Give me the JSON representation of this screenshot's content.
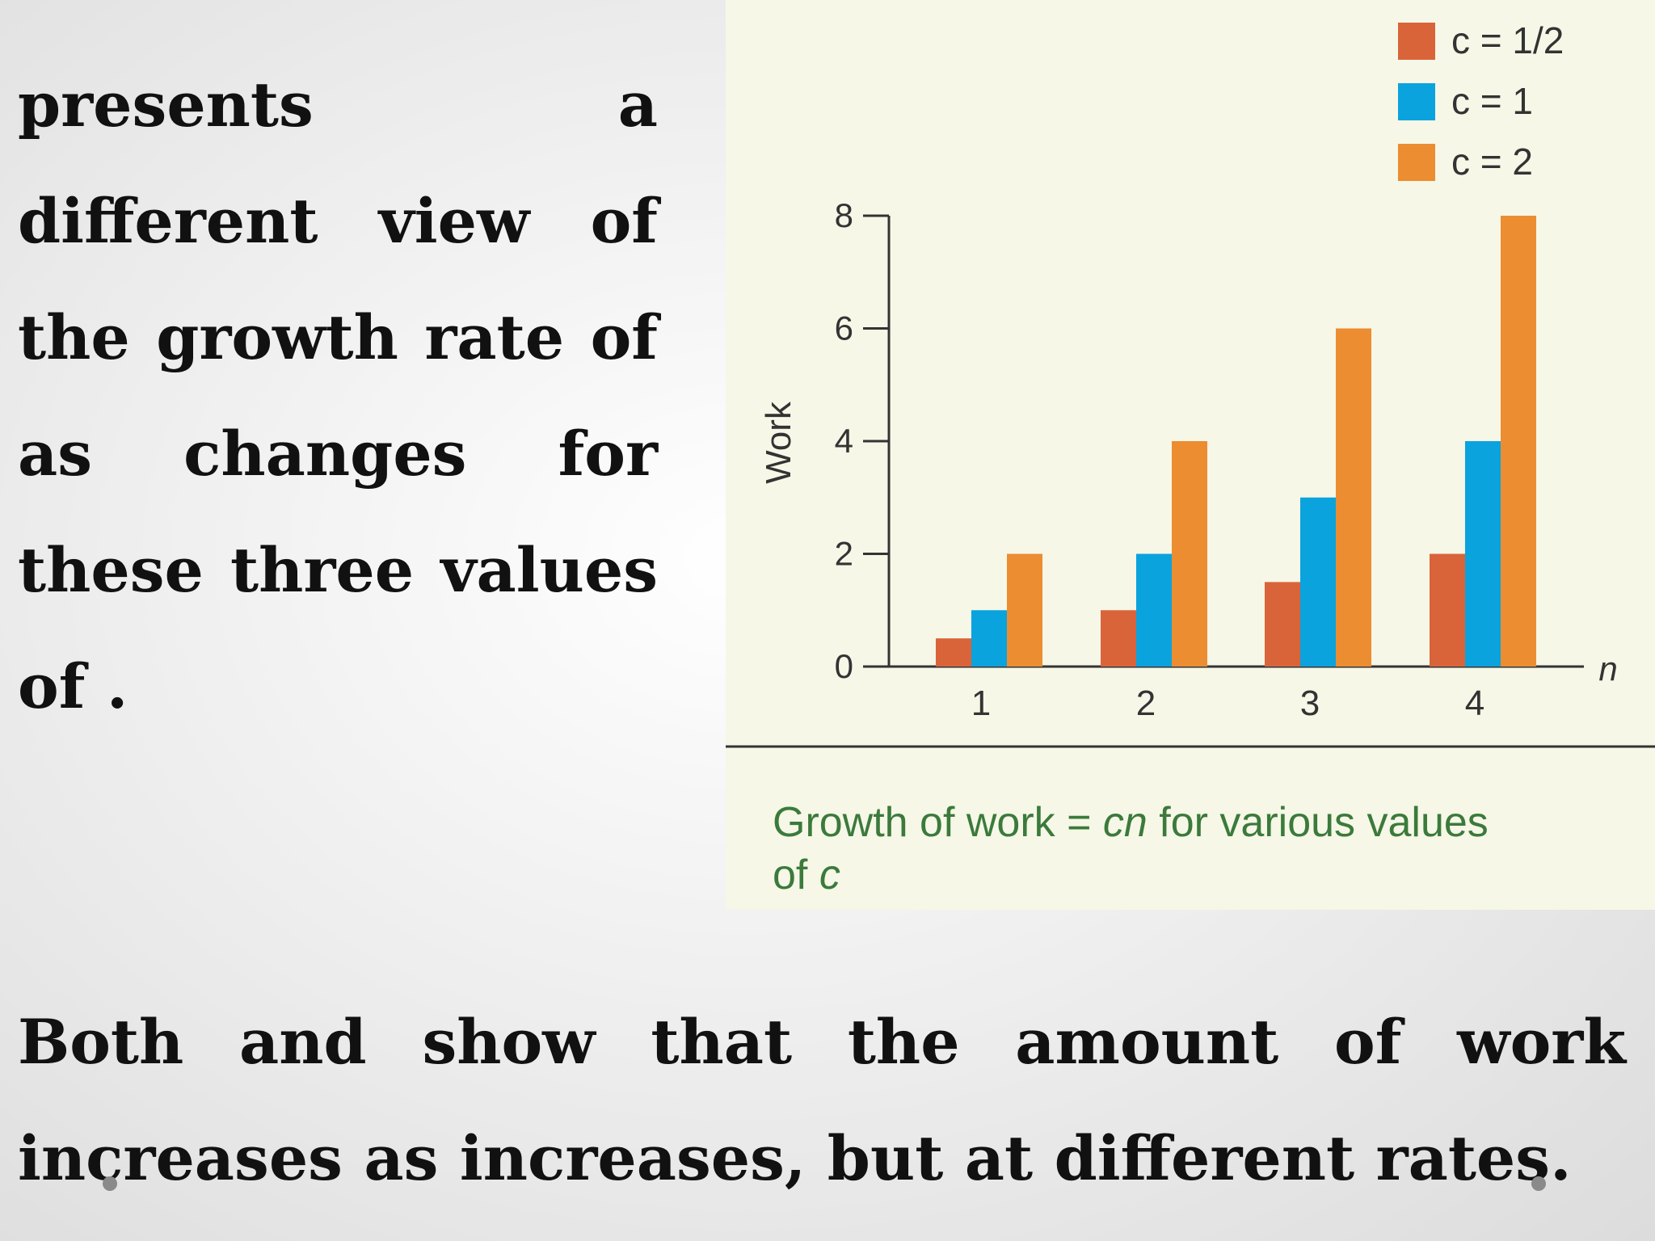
{
  "slide": {
    "paragraph_1": "presents a different view of the growth rate of as changes for these three values of .",
    "paragraph_2": "Both and show that the amount of work increases as increases, but at different rates."
  },
  "chart_data": {
    "type": "bar",
    "categories": [
      "1",
      "2",
      "3",
      "4"
    ],
    "series": [
      {
        "name": "c = 1/2",
        "values": [
          0.5,
          1,
          1.5,
          2
        ],
        "color": "#d9643a"
      },
      {
        "name": "c = 1",
        "values": [
          1,
          2,
          3,
          4
        ],
        "color": "#0aa3dd"
      },
      {
        "name": "c = 2",
        "values": [
          2,
          4,
          6,
          8
        ],
        "color": "#ec8d31"
      }
    ],
    "ylabel": "Work",
    "xlabel": "n",
    "ylim": [
      0,
      8
    ],
    "yticks": [
      "0",
      "2",
      "4",
      "6",
      "8"
    ],
    "legend": "top-right",
    "grid": false,
    "caption": {
      "prefix": "Growth of work = ",
      "emph": "cn",
      "middle": " for various values",
      "line2": "of ",
      "var": "c"
    },
    "caption_color": "#3b7a3b"
  }
}
